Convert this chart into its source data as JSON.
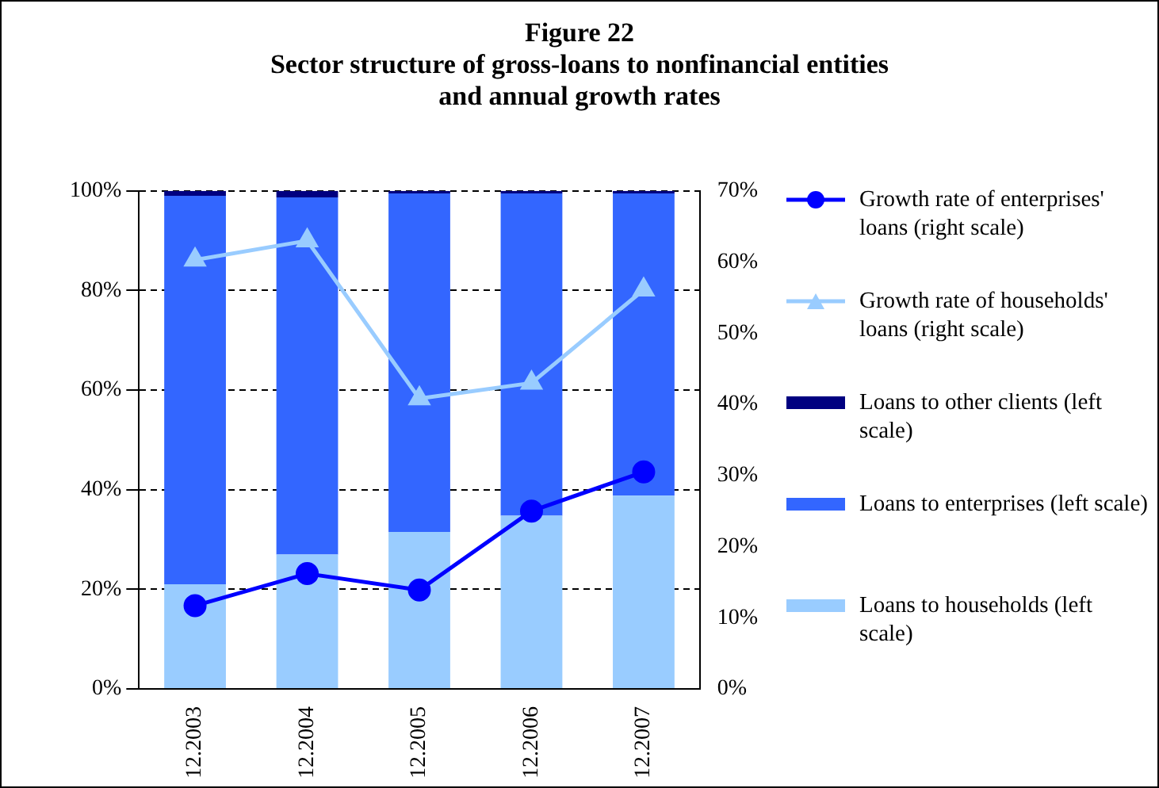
{
  "chart_data": {
    "type": "bar",
    "title": "Figure 22",
    "subtitle": "Sector structure of gross-loans to nonfinancial entities and annual growth rates",
    "categories": [
      "12.2003",
      "12.2004",
      "12.2005",
      "12.2006",
      "12.2007"
    ],
    "stacked": true,
    "grid": "y",
    "legend": "right",
    "ylim": [
      0,
      100
    ],
    "yticks": [
      {
        "value": 0,
        "label": "0%"
      },
      {
        "value": 20,
        "label": "20%"
      },
      {
        "value": 40,
        "label": "40%"
      },
      {
        "value": 60,
        "label": "60%"
      },
      {
        "value": 80,
        "label": "80%"
      },
      {
        "value": 100,
        "label": "100%"
      }
    ],
    "y2lim": [
      0,
      70
    ],
    "y2ticks": [
      {
        "value": 0,
        "label": "0%"
      },
      {
        "value": 10,
        "label": "10%"
      },
      {
        "value": 20,
        "label": "20%"
      },
      {
        "value": 30,
        "label": "30%"
      },
      {
        "value": 40,
        "label": "40%"
      },
      {
        "value": 50,
        "label": "50%"
      },
      {
        "value": 60,
        "label": "60%"
      },
      {
        "value": 70,
        "label": "70%"
      }
    ],
    "series": [
      {
        "name": "Loans to households (left scale)",
        "color": "#99ccff",
        "values": [
          21.0,
          27.0,
          31.5,
          34.8,
          38.8
        ]
      },
      {
        "name": "Loans to enterprises (left scale)",
        "color": "#3366ff",
        "values": [
          78.0,
          71.7,
          68.0,
          64.7,
          60.7
        ]
      },
      {
        "name": "Loans to other clients (left scale)",
        "color": "#000080",
        "values": [
          1.0,
          1.3,
          0.5,
          0.5,
          0.5
        ]
      },
      {
        "name": "Growth rate of households' loans (right scale)",
        "type": "line",
        "axis": "y2",
        "marker": "triangle",
        "color": "#99ccff",
        "values": [
          60.3,
          63.0,
          40.8,
          43.0,
          56.1
        ]
      },
      {
        "name": "Growth rate of enterprises' loans (right scale)",
        "type": "line",
        "axis": "y2",
        "marker": "circle",
        "color": "#0000ff",
        "values": [
          11.7,
          16.2,
          13.9,
          25.0,
          30.5
        ]
      }
    ]
  }
}
